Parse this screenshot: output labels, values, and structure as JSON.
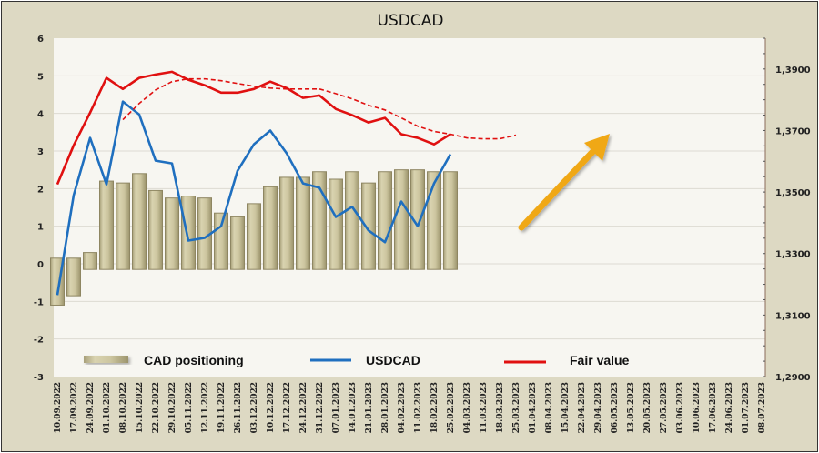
{
  "chart_data": {
    "type": "bar",
    "title": "USDCAD",
    "xlabel": "",
    "ylabel": "",
    "ylim": [
      -3,
      6
    ],
    "y2lim": [
      1.29,
      1.4
    ],
    "left_ticks": [
      "6",
      "5",
      "4",
      "3",
      "2",
      "1",
      "0",
      "-1",
      "-2",
      "-3"
    ],
    "left_tick_values": [
      6,
      5,
      4,
      3,
      2,
      1,
      0,
      -1,
      -2,
      -3
    ],
    "right_ticks": [
      "1,3900",
      "1,3700",
      "1,3500",
      "1,3300",
      "1,3100",
      "1,2900"
    ],
    "right_tick_values": [
      1.39,
      1.37,
      1.35,
      1.33,
      1.31,
      1.29
    ],
    "grid": true,
    "legend_position": "bottom",
    "categories": [
      "10.09.2022",
      "17.09.2022",
      "24.09.2022",
      "01.10.2022",
      "08.10.2022",
      "15.10.2022",
      "22.10.2022",
      "29.10.2022",
      "05.11.2022",
      "12.11.2022",
      "19.11.2022",
      "26.11.2022",
      "03.12.2022",
      "10.12.2022",
      "17.12.2022",
      "24.12.2022",
      "31.12.2022",
      "07.01.2023",
      "14.01.2023",
      "21.01.2023",
      "28.01.2023",
      "04.02.2023",
      "11.02.2023",
      "18.02.2023",
      "25.02.2023",
      "04.03.2023",
      "11.03.2023",
      "18.03.2023",
      "25.03.2023",
      "01.04.2023",
      "08.04.2023",
      "15.04.2023",
      "22.04.2023",
      "29.04.2023",
      "06.05.2023",
      "13.05.2023",
      "20.05.2023",
      "27.05.2023",
      "03.06.2023",
      "10.06.2023",
      "17.06.2023",
      "24.06.2023",
      "01.07.2023",
      "08.07.2023"
    ],
    "series": [
      {
        "name": "CAD positioning",
        "type": "bar",
        "axis": "left",
        "color": "#c9c29a",
        "values": [
          -1.1,
          -0.85,
          0.3,
          2.2,
          2.15,
          2.4,
          1.95,
          1.75,
          1.8,
          1.75,
          1.35,
          1.25,
          1.6,
          2.05,
          2.3,
          2.3,
          2.45,
          2.25,
          2.45,
          2.15,
          2.45,
          2.5,
          2.5,
          2.45,
          2.45
        ]
      },
      {
        "name": "USDCAD",
        "type": "line",
        "axis": "right",
        "color": "#1f6fbf",
        "values": [
          1.3165,
          1.349,
          1.3676,
          1.3525,
          1.3794,
          1.3752,
          1.3602,
          1.3593,
          1.3342,
          1.3351,
          1.3389,
          1.3569,
          1.3655,
          1.37,
          1.3626,
          1.3528,
          1.3514,
          1.3419,
          1.3452,
          1.3375,
          1.3337,
          1.3469,
          1.3389,
          1.3528,
          1.3623
        ]
      },
      {
        "name": "Fair value",
        "type": "line",
        "axis": "right",
        "color": "#e01010",
        "values": [
          1.3525,
          1.3652,
          1.3758,
          1.3871,
          1.3835,
          1.3871,
          1.3882,
          1.3891,
          1.3865,
          1.3847,
          1.3823,
          1.3823,
          1.3835,
          1.3859,
          1.3838,
          1.3806,
          1.3814,
          1.377,
          1.375,
          1.3726,
          1.3741,
          1.3688,
          1.3676,
          1.3655,
          1.3688
        ]
      },
      {
        "name": "Fair value trend",
        "type": "line",
        "style": "dashed",
        "axis": "right",
        "color": "#e01010",
        "start_index": 4,
        "values": [
          1.3735,
          1.3788,
          1.3832,
          1.3859,
          1.3868,
          1.3868,
          1.3862,
          1.3853,
          1.3844,
          1.3838,
          1.3835,
          1.3835,
          1.3835,
          1.382,
          1.3803,
          1.3782,
          1.3767,
          1.3741,
          1.3714,
          1.3697,
          1.3688,
          1.3676,
          1.3673,
          1.3673,
          1.3685
        ]
      }
    ],
    "annotations": [
      {
        "type": "arrow",
        "direction": "up-right",
        "color": "#f0a818",
        "meaning": "expected USDCAD rise"
      }
    ]
  },
  "legend": {
    "items": [
      {
        "label": "CAD positioning",
        "color": "#c9c29a"
      },
      {
        "label": "USDCAD",
        "color": "#1f6fbf"
      },
      {
        "label": "Fair value",
        "color": "#e01010"
      }
    ]
  }
}
